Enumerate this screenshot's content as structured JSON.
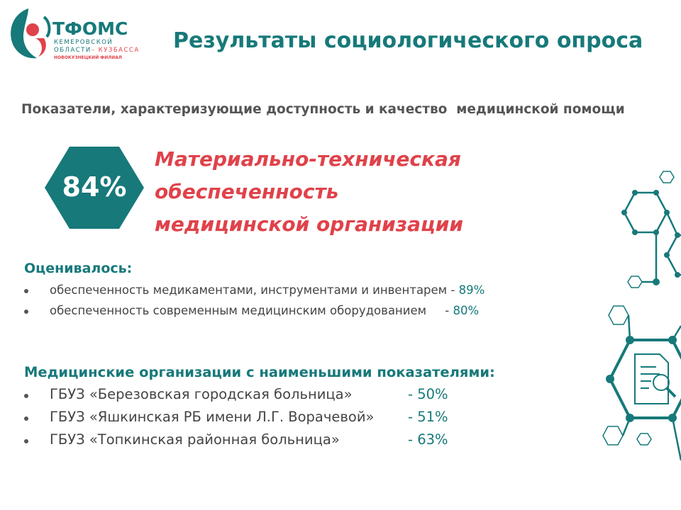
{
  "logo": {
    "name": "ТФОМС",
    "line1": "КЕМЕРОВСКОЙ",
    "line2a": "ОБЛАСТИ",
    "line2b": "– КУЗБАССА",
    "line3": "НОВОКУЗНЕЦКИЙ ФИЛИАЛ"
  },
  "header": {
    "title": "Результаты социологического опроса"
  },
  "subtitle": "Показатели, характеризующие доступность и качество  медицинской помощи",
  "highlight": {
    "value": "84%",
    "lines": [
      "Материально-техническая",
      "обеспеченность",
      "медицинской организации"
    ]
  },
  "evaluated": {
    "heading": "Оценивалось:",
    "items": [
      {
        "text": "обеспеченность медикаментами, инструментами и инвентарем -",
        "value": "89%"
      },
      {
        "text": "обеспеченность современным медицинским оборудованием     -",
        "value": "80%"
      }
    ]
  },
  "lowest": {
    "heading": "Медицинские организации с наименьшими показателями:",
    "items": [
      {
        "text": "ГБУЗ «Березовская городская больница»",
        "value": "- 50%"
      },
      {
        "text": "ГБУЗ «Яшкинская РБ имени Л.Г. Ворачевой»",
        "value": "- 51%"
      },
      {
        "text": "ГБУЗ «Топкинская районная больница»",
        "value": "- 63%"
      }
    ]
  }
}
